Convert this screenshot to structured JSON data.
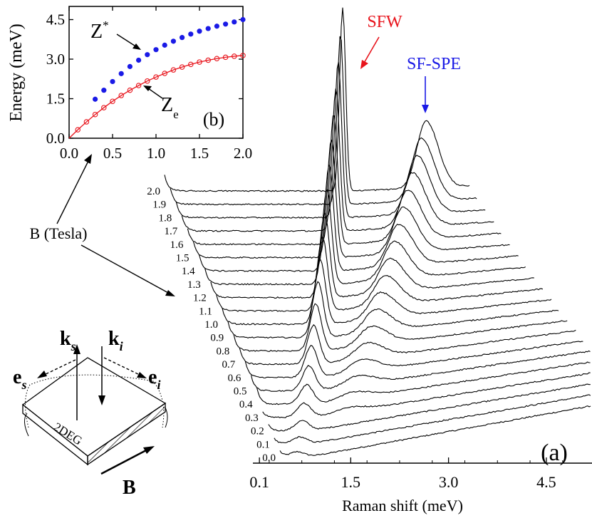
{
  "charts": [
    {
      "panel_label": "(a)",
      "type": "line",
      "waterfall": true,
      "xlabel": "Raman shift (meV)",
      "xticks": [
        "0.1",
        "1.5",
        "3.0",
        "4.5"
      ],
      "x_range": [
        0,
        5.2
      ],
      "series_labels": [
        "0.0",
        "0.1",
        "0.2",
        "0.3",
        "0.4",
        "0.5",
        "0.6",
        "0.7",
        "0.8",
        "0.9",
        "1.0",
        "1.1",
        "1.2",
        "1.3",
        "1.4",
        "1.5",
        "1.6",
        "1.7",
        "1.8",
        "1.9",
        "2.0"
      ],
      "annotations": [
        {
          "text": "SFW",
          "color": "#e8141c"
        },
        {
          "text": "SF-SPE",
          "color": "#1a1ae6"
        }
      ],
      "legend_shared_label": "B (Tesla)"
    },
    {
      "panel_label": "(b)",
      "type": "scatter",
      "xlabel": "",
      "ylabel": "Energy (meV)",
      "xticks": [
        "0.0",
        "0.5",
        "1.0",
        "1.5",
        "2.0"
      ],
      "yticks": [
        "0.0",
        "1.5",
        "3.0",
        "4.5"
      ],
      "xlim": [
        0,
        2.0
      ],
      "ylim": [
        0,
        5.0
      ],
      "series": [
        {
          "name": "Z*",
          "color": "#1a1ae6",
          "marker": "filled-circle",
          "x": [
            0.3,
            0.4,
            0.5,
            0.6,
            0.7,
            0.8,
            0.9,
            1.0,
            1.1,
            1.2,
            1.3,
            1.4,
            1.5,
            1.6,
            1.7,
            1.8,
            1.9,
            2.0
          ],
          "y": [
            1.48,
            1.82,
            2.15,
            2.45,
            2.72,
            2.96,
            3.17,
            3.36,
            3.53,
            3.68,
            3.82,
            3.95,
            4.06,
            4.16,
            4.25,
            4.33,
            4.41,
            4.5
          ]
        },
        {
          "name": "Ze",
          "color": "#e8141c",
          "marker": "open-circle",
          "fit": "line",
          "x": [
            0.1,
            0.2,
            0.3,
            0.4,
            0.5,
            0.6,
            0.7,
            0.8,
            0.9,
            1.0,
            1.1,
            1.2,
            1.3,
            1.4,
            1.5,
            1.6,
            1.7,
            1.8,
            1.9,
            2.0
          ],
          "y": [
            0.32,
            0.62,
            0.9,
            1.16,
            1.4,
            1.62,
            1.82,
            2.0,
            2.17,
            2.32,
            2.46,
            2.59,
            2.7,
            2.8,
            2.89,
            2.96,
            3.02,
            3.07,
            3.11,
            3.14
          ]
        }
      ],
      "annotations": [
        {
          "text": "Z*",
          "color": "#000000"
        },
        {
          "text": "Ze",
          "color": "#000000"
        }
      ]
    }
  ],
  "diagram": {
    "labels": {
      "ks": "k",
      "ks_sub": "s",
      "ki": "k",
      "ki_sub": "i",
      "es": "e",
      "es_sub": "s",
      "ei": "e",
      "ei_sub": "i",
      "sample": "2DEG",
      "field": "B"
    }
  }
}
